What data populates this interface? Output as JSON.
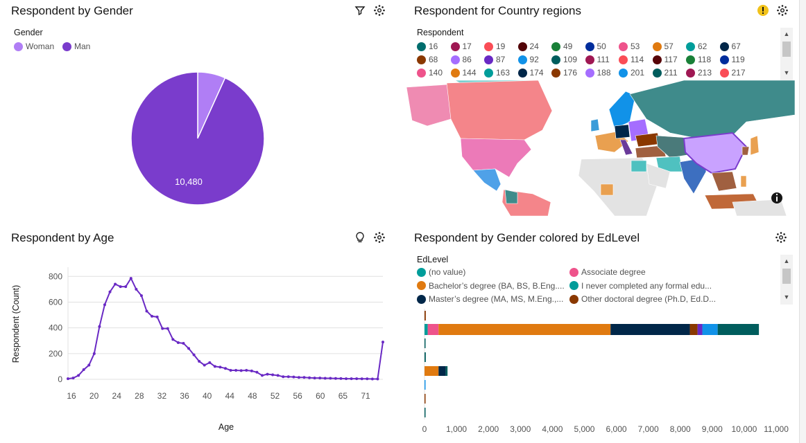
{
  "panels": {
    "gender": {
      "title": "Respondent by Gender",
      "legend_title": "Gender"
    },
    "country": {
      "title": "Respondent for Country regions",
      "legend_title": "Respondent"
    },
    "age": {
      "title": "Respondent by Age"
    },
    "edlevel": {
      "title": "Respondent by Gender colored by EdLevel",
      "legend_title": "EdLevel"
    }
  },
  "icons": {
    "gender": [
      "filter-icon",
      "settings-icon"
    ],
    "country": [
      "warning-icon",
      "settings-icon"
    ],
    "age": [
      "lightbulb-icon",
      "settings-icon"
    ],
    "edlevel": [
      "settings-icon"
    ],
    "map_info": "info-icon"
  },
  "colors": {
    "accent": "#7a3ccc",
    "woman": "#b07ef5",
    "man": "#7a3ccc",
    "warning": "#f1c21b",
    "orange": "#e07a10",
    "navy": "#0f2b4a"
  },
  "chart_data": [
    {
      "type": "pie",
      "title": "Respondent by Gender",
      "legend_title": "Gender",
      "legend": [
        {
          "label": "Woman",
          "color": "#b07ef5"
        },
        {
          "label": "Man",
          "color": "#7a3ccc"
        }
      ],
      "slices": [
        {
          "label": "Woman",
          "value": 760
        },
        {
          "label": "Man",
          "value": 10480
        }
      ],
      "data_labels": [
        "10,480"
      ]
    },
    {
      "type": "map",
      "title": "Respondent for Country regions",
      "legend_title": "Respondent",
      "legend": [
        {
          "label": "16",
          "color": "#006d6d"
        },
        {
          "label": "17",
          "color": "#9f1853"
        },
        {
          "label": "19",
          "color": "#fa4d56"
        },
        {
          "label": "24",
          "color": "#520408"
        },
        {
          "label": "49",
          "color": "#198038"
        },
        {
          "label": "50",
          "color": "#002d9c"
        },
        {
          "label": "53",
          "color": "#ee538b"
        },
        {
          "label": "57",
          "color": "#e07a10"
        },
        {
          "label": "62",
          "color": "#009d9a"
        },
        {
          "label": "67",
          "color": "#012749"
        },
        {
          "label": "68",
          "color": "#8a3800"
        },
        {
          "label": "86",
          "color": "#a56eff"
        },
        {
          "label": "87",
          "color": "#6929c4"
        },
        {
          "label": "92",
          "color": "#1192e8"
        },
        {
          "label": "109",
          "color": "#005d5d"
        },
        {
          "label": "111",
          "color": "#9f1853"
        },
        {
          "label": "114",
          "color": "#fa4d56"
        },
        {
          "label": "117",
          "color": "#570408"
        },
        {
          "label": "118",
          "color": "#198038"
        },
        {
          "label": "119",
          "color": "#002d9c"
        },
        {
          "label": "140",
          "color": "#ee538b"
        },
        {
          "label": "144",
          "color": "#e07a10"
        },
        {
          "label": "163",
          "color": "#009d9a"
        },
        {
          "label": "174",
          "color": "#012749"
        },
        {
          "label": "176",
          "color": "#8a3800"
        },
        {
          "label": "188",
          "color": "#a56eff"
        },
        {
          "label": "201",
          "color": "#1192e8"
        },
        {
          "label": "211",
          "color": "#005d5d"
        },
        {
          "label": "213",
          "color": "#9f1853"
        },
        {
          "label": "217",
          "color": "#fa4d56"
        }
      ]
    },
    {
      "type": "line",
      "title": "Respondent by Age",
      "xlabel": "Age",
      "ylabel": "Respondent (Count)",
      "x_ticks": [
        "16",
        "20",
        "24",
        "28",
        "32",
        "36",
        "40",
        "44",
        "48",
        "52",
        "56",
        "60",
        "65",
        "71"
      ],
      "y_ticks": [
        "0",
        "200",
        "400",
        "600",
        "800"
      ],
      "ylim": [
        0,
        850
      ],
      "series": [
        {
          "color": "#6929c4",
          "values": [
            5,
            10,
            30,
            75,
            110,
            200,
            410,
            580,
            680,
            740,
            720,
            720,
            785,
            700,
            650,
            530,
            490,
            485,
            395,
            395,
            310,
            285,
            280,
            240,
            190,
            140,
            110,
            130,
            100,
            95,
            85,
            70,
            70,
            68,
            70,
            65,
            55,
            30,
            40,
            35,
            30,
            20,
            20,
            18,
            15,
            15,
            12,
            10,
            10,
            8,
            8,
            7,
            6,
            5,
            5,
            5,
            4,
            4,
            3,
            3,
            290
          ]
        }
      ]
    },
    {
      "type": "bar",
      "orientation": "horizontal",
      "stacked": true,
      "title": "Respondent by Gender colored by EdLevel",
      "legend_title": "EdLevel",
      "legend": [
        {
          "label": "(no value)",
          "color": "#009d9a"
        },
        {
          "label": "Associate degree",
          "color": "#ee538b"
        },
        {
          "label": "Bachelor’s degree (BA, BS, B.Eng....",
          "color": "#e07a10"
        },
        {
          "label": "I never completed any formal edu...",
          "color": "#009d9a"
        },
        {
          "label": "Master’s degree (MA, MS, M.Eng.,...",
          "color": "#012749"
        },
        {
          "label": "Other doctoral degree (Ph.D, Ed.D...",
          "color": "#8a3800"
        }
      ],
      "x_ticks": [
        "0",
        "1,000",
        "2,000",
        "3,000",
        "4,000",
        "5,000",
        "6,000",
        "7,000",
        "8,000",
        "9,000",
        "10,000",
        "11,000"
      ],
      "xlim": [
        0,
        11000
      ],
      "rows": [
        {
          "segments": [
            {
              "value": 40,
              "color": "#8a3800"
            }
          ]
        },
        {
          "segments": [
            {
              "value": 100,
              "color": "#009d9a"
            },
            {
              "value": 340,
              "color": "#ee538b"
            },
            {
              "value": 5380,
              "color": "#e07a10"
            },
            {
              "value": 2480,
              "color": "#012749"
            },
            {
              "value": 240,
              "color": "#8a3800"
            },
            {
              "value": 150,
              "color": "#6929c4"
            },
            {
              "value": 480,
              "color": "#1192e8"
            },
            {
              "value": 1290,
              "color": "#005d5d"
            }
          ]
        },
        {
          "segments": [
            {
              "value": 30,
              "color": "#005d5d"
            }
          ]
        },
        {
          "segments": [
            {
              "value": 40,
              "color": "#005d5d"
            }
          ]
        },
        {
          "segments": [
            {
              "value": 440,
              "color": "#e07a10"
            },
            {
              "value": 220,
              "color": "#012749"
            },
            {
              "value": 60,
              "color": "#005d5d"
            }
          ]
        },
        {
          "segments": [
            {
              "value": 20,
              "color": "#1192e8"
            }
          ]
        },
        {
          "segments": [
            {
              "value": 15,
              "color": "#8a3800"
            }
          ]
        },
        {
          "segments": [
            {
              "value": 30,
              "color": "#005d5d"
            }
          ]
        }
      ]
    }
  ]
}
